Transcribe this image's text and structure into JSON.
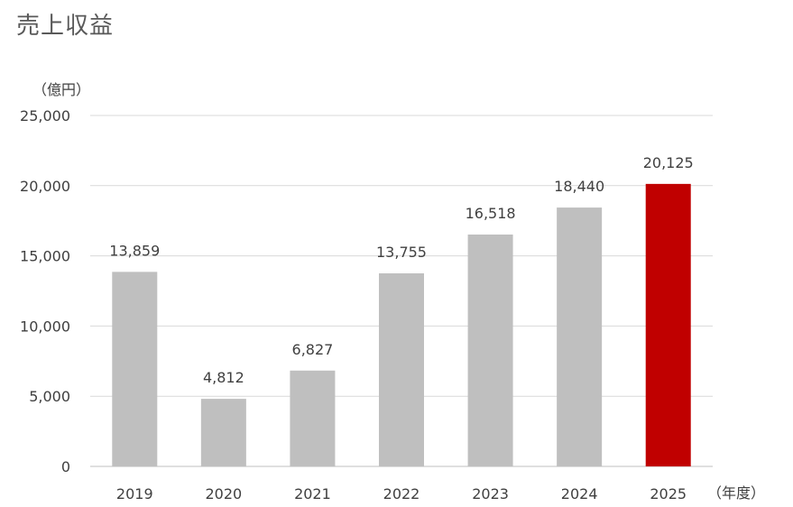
{
  "title": "売上収益",
  "chart_data": {
    "type": "bar",
    "title": "売上収益",
    "ylabel": "（億円）",
    "xlabel": "（年度）",
    "categories": [
      "2019",
      "2020",
      "2021",
      "2022",
      "2023",
      "2024",
      "2025"
    ],
    "values": [
      13859,
      4812,
      6827,
      13755,
      16518,
      18440,
      20125
    ],
    "data_labels": [
      "13,859",
      "4,812",
      "6,827",
      "13,755",
      "16,518",
      "18,440",
      "20,125"
    ],
    "ylim": [
      0,
      25000
    ],
    "yticks": [
      0,
      5000,
      10000,
      15000,
      20000,
      25000
    ],
    "ytick_labels": [
      "0",
      "5,000",
      "10,000",
      "15,000",
      "20,000",
      "25,000"
    ],
    "grid": true,
    "colors": {
      "default_bar": "#bfbfbf",
      "highlight_bar": "#c00000",
      "gridline": "#d9d9d9"
    },
    "highlight_index": 6
  }
}
